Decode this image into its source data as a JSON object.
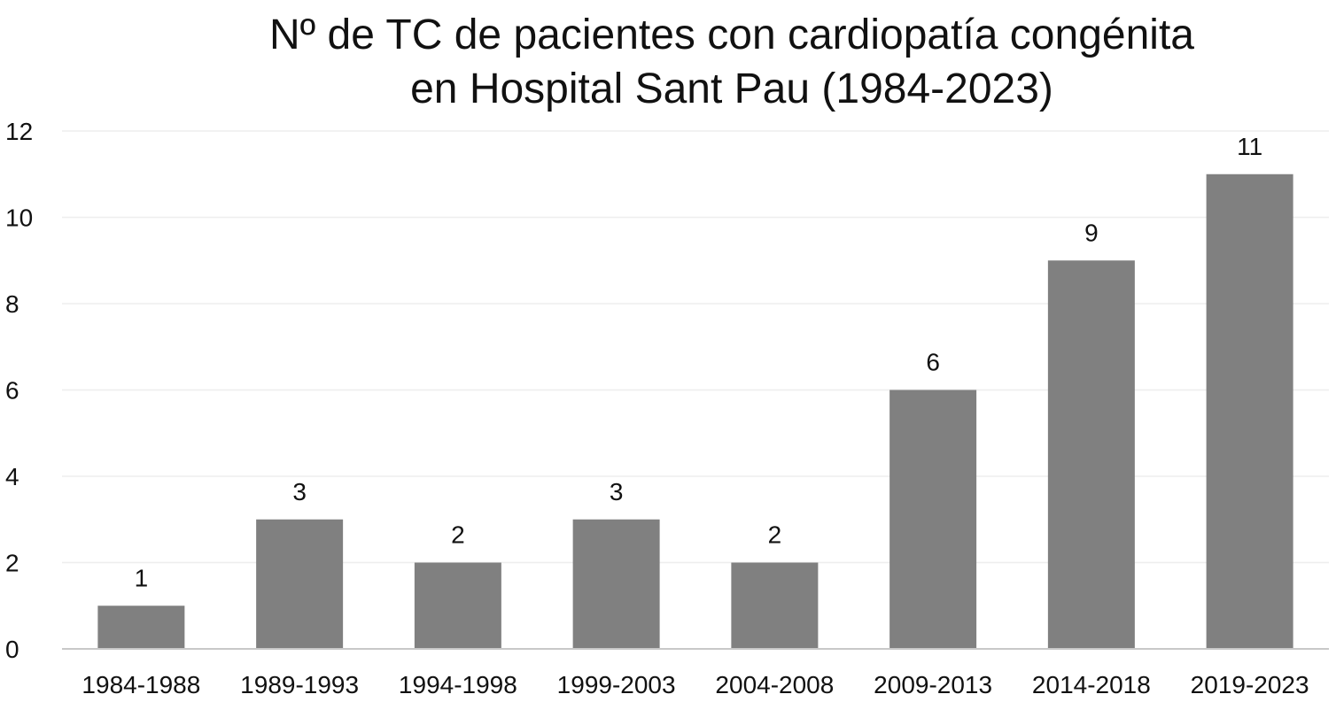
{
  "chart_data": {
    "type": "bar",
    "title_lines": [
      "Nº de TC de pacientes con cardiopatía congénita",
      "en Hospital Sant Pau (1984-2023)"
    ],
    "categories": [
      "1984-1988",
      "1989-1993",
      "1994-1998",
      "1999-2003",
      "2004-2008",
      "2009-2013",
      "2014-2018",
      "2019-2023"
    ],
    "values": [
      1,
      3,
      2,
      3,
      2,
      6,
      9,
      11
    ],
    "xlabel": "",
    "ylabel": "",
    "ylim": [
      0,
      12
    ],
    "yticks": [
      0,
      2,
      4,
      6,
      8,
      10,
      12
    ],
    "grid": true,
    "legend": "none",
    "bar_color": "#808080",
    "data_labels": true
  }
}
